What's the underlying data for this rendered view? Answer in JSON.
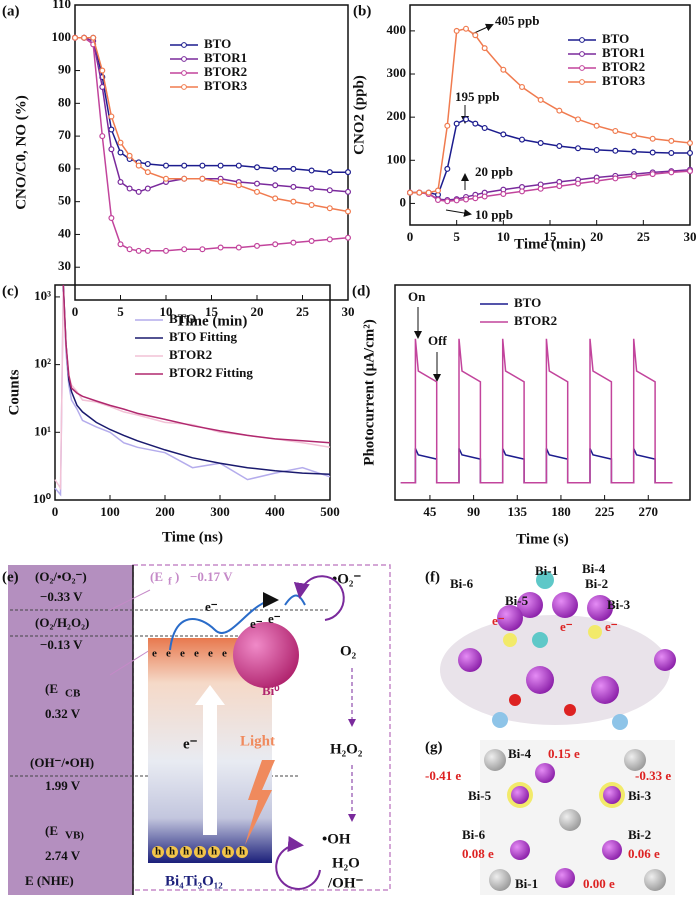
{
  "chart_data": [
    {
      "type": "line",
      "label": "(a)",
      "xlabel": "Time (min)",
      "ylabel": "CNO/C0, NO (%)",
      "markers": true,
      "x": [
        0,
        1,
        2,
        3,
        4,
        5,
        6,
        7,
        8,
        10,
        12,
        14,
        16,
        18,
        20,
        22,
        24,
        26,
        28,
        30
      ],
      "series": [
        {
          "name": "BTO",
          "color": "#1c1c8e",
          "values": [
            100,
            100,
            100,
            88,
            72,
            65,
            63,
            62,
            61.5,
            61,
            61,
            61,
            61,
            61,
            60.5,
            60,
            60,
            59.5,
            59,
            59
          ]
        },
        {
          "name": "BTOR1",
          "color": "#7a2a9c",
          "values": [
            100,
            100,
            99,
            85,
            66,
            56,
            54,
            53,
            54,
            56,
            57,
            57,
            57,
            56,
            55.5,
            55,
            54.5,
            54,
            53.5,
            53
          ]
        },
        {
          "name": "BTOR2",
          "color": "#c2449c",
          "values": [
            100,
            100,
            98,
            70,
            45,
            37,
            35.5,
            35,
            35,
            35,
            35.5,
            35.5,
            36,
            36,
            36.5,
            37,
            37.5,
            38,
            38.5,
            39
          ]
        },
        {
          "name": "BTOR3",
          "color": "#f07b4f",
          "values": [
            100,
            100,
            100,
            90,
            76,
            68,
            64,
            61,
            59,
            57,
            57,
            57,
            56,
            55,
            53,
            51,
            50,
            49,
            48,
            47
          ]
        }
      ],
      "xlim": [
        0,
        30
      ],
      "xticks": [
        0,
        5,
        10,
        15,
        20,
        25,
        30
      ],
      "ylim": [
        20,
        110
      ],
      "yticks": [
        30,
        40,
        50,
        60,
        70,
        80,
        90,
        100,
        110
      ]
    },
    {
      "type": "line",
      "label": "(b)",
      "xlabel": "Time (min)",
      "ylabel": "CNO2 (ppb)",
      "markers": true,
      "x": [
        0,
        1,
        2,
        3,
        4,
        5,
        6,
        7,
        8,
        10,
        12,
        14,
        16,
        18,
        20,
        22,
        24,
        26,
        28,
        30
      ],
      "series": [
        {
          "name": "BTO",
          "color": "#1c1c8e",
          "values": [
            25,
            25,
            25,
            20,
            80,
            185,
            195,
            185,
            175,
            160,
            148,
            140,
            133,
            128,
            124,
            122,
            120,
            118,
            117,
            117
          ]
        },
        {
          "name": "BTOR1",
          "color": "#7a2a9c",
          "values": [
            25,
            25,
            22,
            10,
            8,
            10,
            15,
            20,
            25,
            32,
            38,
            44,
            50,
            55,
            60,
            64,
            68,
            72,
            75,
            78
          ]
        },
        {
          "name": "BTOR2",
          "color": "#c2449c",
          "values": [
            25,
            25,
            22,
            8,
            5,
            7,
            9,
            12,
            16,
            22,
            28,
            34,
            40,
            46,
            52,
            58,
            63,
            68,
            72,
            75
          ]
        },
        {
          "name": "BTOR3",
          "color": "#f07b4f",
          "values": [
            25,
            25,
            25,
            30,
            180,
            400,
            405,
            390,
            360,
            310,
            270,
            240,
            215,
            195,
            180,
            168,
            158,
            150,
            145,
            140
          ]
        }
      ],
      "annotations": [
        "405 ppb",
        "195 ppb",
        "20 ppb",
        "10 ppb"
      ],
      "xlim": [
        0,
        30
      ],
      "xticks": [
        0,
        5,
        10,
        15,
        20,
        25,
        30
      ],
      "ylim": [
        -50,
        460
      ],
      "yticks": [
        0,
        100,
        200,
        300,
        400
      ]
    },
    {
      "type": "line",
      "label": "(c)",
      "xlabel": "Time (ns)",
      "ylabel": "Counts",
      "log_y": true,
      "x": [
        0,
        10,
        15,
        20,
        25,
        30,
        40,
        50,
        75,
        100,
        125,
        150,
        200,
        250,
        300,
        350,
        400,
        450,
        500
      ],
      "series": [
        {
          "name": "BTO",
          "color": "#b4acec",
          "values": [
            1.5,
            1.2,
            1500,
            150,
            50,
            30,
            22,
            15,
            12,
            10,
            7,
            6,
            5,
            3,
            3.5,
            2,
            2.5,
            3,
            2.2
          ]
        },
        {
          "name": "BTO Fitting",
          "color": "#1a1a6e",
          "values": [
            null,
            null,
            1500,
            200,
            60,
            40,
            25,
            20,
            14,
            11,
            9,
            7.5,
            5.5,
            4.2,
            3.5,
            3,
            2.7,
            2.5,
            2.4
          ]
        },
        {
          "name": "BTOR2",
          "color": "#f2c2d6",
          "values": [
            2,
            1.5,
            1200,
            180,
            70,
            50,
            40,
            30,
            28,
            24,
            20,
            18,
            14,
            13,
            10,
            9,
            8,
            7,
            6
          ]
        },
        {
          "name": "BTOR2 Fitting",
          "color": "#b0286e",
          "values": [
            null,
            null,
            1500,
            200,
            70,
            45,
            38,
            34,
            29,
            25,
            22,
            19,
            15.5,
            12.5,
            10.5,
            9,
            8,
            7.5,
            7
          ]
        }
      ],
      "xlim": [
        0,
        500
      ],
      "xticks": [
        0,
        100,
        200,
        300,
        400,
        500
      ],
      "ylim": [
        1,
        1500
      ],
      "yticks": [
        {
          "value": 1,
          "label": "10⁰"
        },
        {
          "value": 10,
          "label": "10¹"
        },
        {
          "value": 100,
          "label": "10²"
        },
        {
          "value": 1000,
          "label": "10³"
        }
      ]
    },
    {
      "type": "line",
      "label": "(d)",
      "xlabel": "Time (s)",
      "ylabel": "Photocurrent (μA/cm²)",
      "x": [
        15,
        30,
        30,
        33,
        52,
        52,
        75,
        75,
        78,
        97,
        97,
        120,
        120,
        123,
        142,
        142,
        165,
        165,
        168,
        187,
        187,
        210,
        210,
        213,
        232,
        232,
        255,
        255,
        258,
        277,
        277,
        295
      ],
      "series": [
        {
          "name": "BTO",
          "color": "#1c1c8e",
          "values": [
            0.08,
            0.08,
            0.24,
            0.21,
            0.19,
            0.08,
            0.08,
            0.24,
            0.21,
            0.19,
            0.08,
            0.08,
            0.24,
            0.21,
            0.19,
            0.08,
            0.08,
            0.24,
            0.21,
            0.19,
            0.08,
            0.08,
            0.24,
            0.21,
            0.19,
            0.08,
            0.08,
            0.24,
            0.21,
            0.19,
            0.08,
            0.08
          ]
        },
        {
          "name": "BTOR2",
          "color": "#c2449c",
          "values": [
            0.08,
            0.08,
            0.75,
            0.6,
            0.55,
            0.08,
            0.08,
            0.75,
            0.6,
            0.55,
            0.08,
            0.08,
            0.75,
            0.6,
            0.55,
            0.08,
            0.08,
            0.75,
            0.6,
            0.55,
            0.08,
            0.08,
            0.75,
            0.6,
            0.55,
            0.08,
            0.08,
            0.75,
            0.6,
            0.55,
            0.08,
            0.08
          ]
        }
      ],
      "annotations": [
        "On",
        "Off"
      ],
      "xlim": [
        9,
        313
      ],
      "xticks": [
        45,
        90,
        135,
        180,
        225,
        270
      ],
      "ylim": [
        0,
        1
      ]
    }
  ],
  "panels": {
    "e": {
      "label": "(e)",
      "couple1": "(O₂/•O₂⁻)",
      "pot1": "−0.33 V",
      "couple2": "(O₂/H₂O₂)",
      "pot2": "−0.13 V",
      "ecb": "(E",
      "ecb_sub": "CB",
      "pot_cb": "0.32 V",
      "couple3": "(OH⁻/•OH)",
      "pot3": "1.99 V",
      "evb": "(E",
      "evb_sub": "VB)",
      "pot_vb": "2.74 V",
      "axis": "E (NHE)",
      "ef": "(E",
      "ef_sub": "f",
      "ef_close": ")",
      "pot_f": "−0.17 V",
      "electron": "e⁻",
      "e": "e",
      "h": "h",
      "bi0": "Bi⁰",
      "o2rad": "•O₂⁻",
      "o2": "O₂",
      "h2o2": "H₂O₂",
      "oh": "•OH",
      "h2o": "H₂O",
      "ohm": "/OH⁻",
      "light": "Light",
      "material": "Bi₄Ti₃O₁₂"
    },
    "f": {
      "label": "(f)",
      "bi1": "Bi-1",
      "bi2": "Bi-2",
      "bi3": "Bi-3",
      "bi4": "Bi-4",
      "bi5": "Bi-5",
      "bi6": "Bi-6",
      "electron": "e⁻"
    },
    "g": {
      "label": "(g)",
      "bi1": "Bi-1",
      "bi2": "Bi-2",
      "bi3": "Bi-3",
      "bi4": "Bi-4",
      "bi5": "Bi-5",
      "bi6": "Bi-6",
      "q1": "0.00 e",
      "q2": "0.06 e",
      "q3": "-0.33 e",
      "q4": "0.15 e",
      "q5": "-0.41 e",
      "q6": "0.08 e"
    }
  }
}
